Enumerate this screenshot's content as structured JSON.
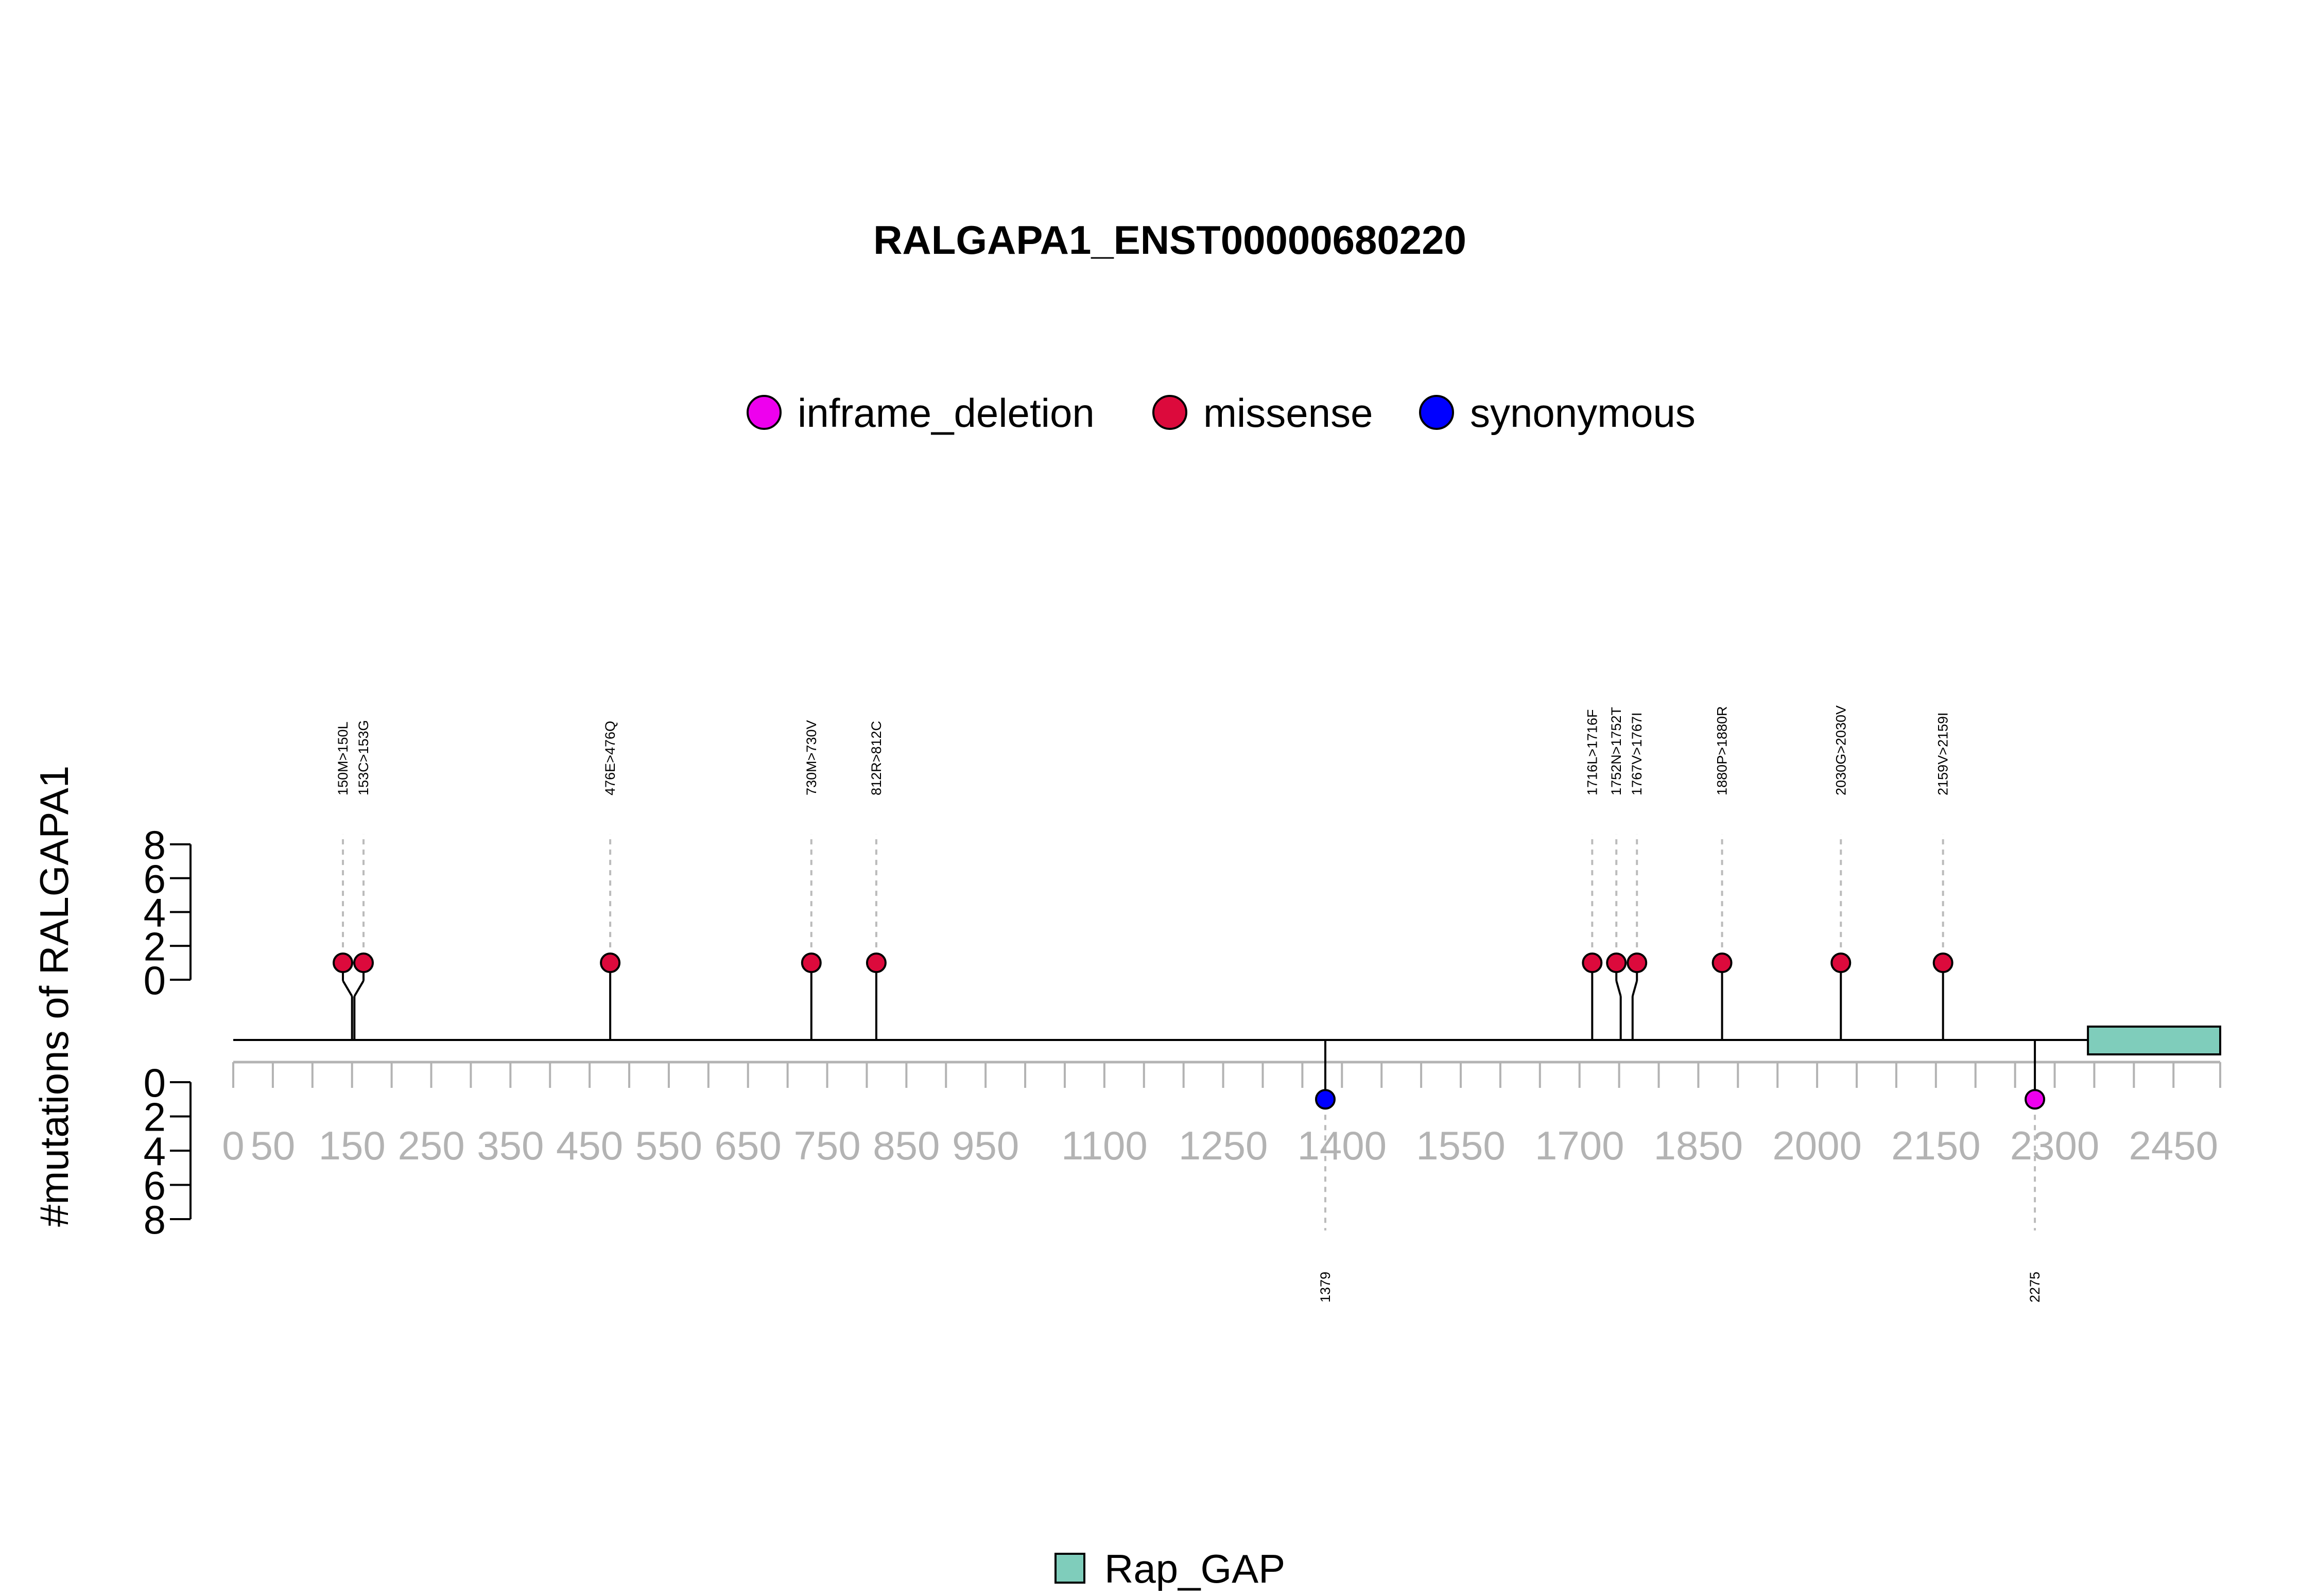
{
  "chart_data": {
    "type": "lollipop",
    "title": "RALGAPA1_ENST00000680220",
    "ylabel": "#mutations of RALGAPA1",
    "xlim": [
      0,
      2509
    ],
    "ylim": [
      0,
      8
    ],
    "y_ticks": [
      0,
      2,
      4,
      6,
      8
    ],
    "x_ticks": [
      0,
      50,
      150,
      250,
      350,
      450,
      550,
      650,
      750,
      850,
      950,
      1100,
      1250,
      1400,
      1550,
      1700,
      1850,
      2000,
      2150,
      2300,
      2450
    ],
    "legend": [
      {
        "name": "inframe_deletion",
        "color": "#ee00ee"
      },
      {
        "name": "missense",
        "color": "#dc0a3c"
      },
      {
        "name": "synonymous",
        "color": "#0000ff"
      }
    ],
    "top_mutations": [
      {
        "pos": 150,
        "label": "150M>150L",
        "count": 1,
        "type": "missense"
      },
      {
        "pos": 153,
        "label": "153C>153G",
        "count": 1,
        "type": "missense"
      },
      {
        "pos": 476,
        "label": "476E>476Q",
        "count": 1,
        "type": "missense"
      },
      {
        "pos": 730,
        "label": "730M>730V",
        "count": 1,
        "type": "missense"
      },
      {
        "pos": 812,
        "label": "812R>812C",
        "count": 1,
        "type": "missense"
      },
      {
        "pos": 1716,
        "label": "1716L>1716F",
        "count": 1,
        "type": "missense"
      },
      {
        "pos": 1752,
        "label": "1752N>1752T",
        "count": 1,
        "type": "missense"
      },
      {
        "pos": 1767,
        "label": "1767V>1767I",
        "count": 1,
        "type": "missense"
      },
      {
        "pos": 1880,
        "label": "1880P>1880R",
        "count": 1,
        "type": "missense"
      },
      {
        "pos": 2030,
        "label": "2030G>2030V",
        "count": 1,
        "type": "missense"
      },
      {
        "pos": 2159,
        "label": "2159V>2159I",
        "count": 1,
        "type": "missense"
      }
    ],
    "bottom_mutations": [
      {
        "pos": 1379,
        "label": "1379",
        "count": 1,
        "type": "synonymous"
      },
      {
        "pos": 2275,
        "label": "2275",
        "count": 1,
        "type": "inframe_deletion"
      }
    ],
    "domains": [
      {
        "name": "Rap_GAP",
        "start": 2342,
        "end": 2509,
        "color": "#7fcdbb"
      }
    ]
  }
}
